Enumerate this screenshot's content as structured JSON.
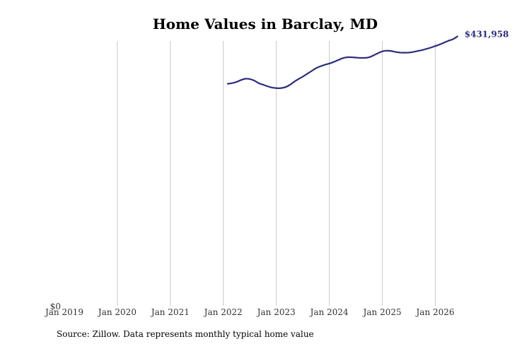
{
  "chart_data": {
    "type": "line",
    "title": "Home Values in Barclay, MD",
    "xlabel": "",
    "ylabel": "",
    "x_tick_labels": [
      "Jan 2019",
      "Jan 2020",
      "Jan 2021",
      "Jan 2022",
      "Jan 2023",
      "Jan 2024",
      "Jan 2025",
      "Jan 2026"
    ],
    "y_tick_labels": [
      "$0"
    ],
    "xlim": [
      "2019-01",
      "2026-07"
    ],
    "ylim": [
      0,
      445000
    ],
    "grid": "vertical",
    "legend": "none",
    "end_label": "$431,958",
    "line_color": "#2b2b7f",
    "x": [
      "2022-02",
      "2022-03",
      "2022-04",
      "2022-05",
      "2022-06",
      "2022-07",
      "2022-08",
      "2022-09",
      "2022-10",
      "2022-11",
      "2022-12",
      "2023-01",
      "2023-02",
      "2023-03",
      "2023-04",
      "2023-05",
      "2023-06",
      "2023-07",
      "2023-08",
      "2023-09",
      "2023-10",
      "2023-11",
      "2023-12",
      "2024-01",
      "2024-02",
      "2024-03",
      "2024-04",
      "2024-05",
      "2024-06",
      "2024-07",
      "2024-08",
      "2024-09",
      "2024-10",
      "2024-11",
      "2024-12",
      "2025-01",
      "2025-02",
      "2025-03",
      "2025-04",
      "2025-05",
      "2025-06",
      "2025-07",
      "2025-08",
      "2025-09",
      "2025-10",
      "2025-11",
      "2025-12",
      "2026-01",
      "2026-02",
      "2026-03",
      "2026-04",
      "2026-05",
      "2026-06"
    ],
    "series": [
      {
        "values": [
          356000,
          357000,
          359000,
          362000,
          364000,
          363500,
          361000,
          357000,
          354500,
          352000,
          350000,
          349000,
          349000,
          350500,
          354000,
          359000,
          363500,
          367500,
          372000,
          376500,
          381000,
          384000,
          386500,
          388500,
          391000,
          394000,
          397000,
          398500,
          398500,
          398000,
          397500,
          397500,
          398500,
          401500,
          405000,
          408000,
          409000,
          408500,
          407000,
          406000,
          405800,
          406000,
          407000,
          408500,
          410000,
          412000,
          414000,
          416500,
          419000,
          422000,
          425000,
          427500,
          431958
        ]
      }
    ]
  },
  "source_text": "Source: Zillow. Data represents monthly typical home value"
}
